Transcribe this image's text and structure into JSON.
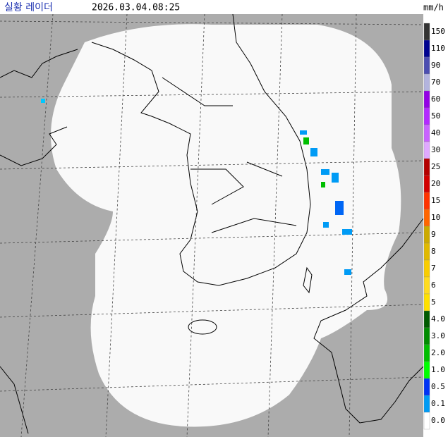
{
  "header": {
    "title": "실황 레이더",
    "timestamp": "2026.03.04.08:25",
    "unit": "mm/h"
  },
  "legend": {
    "items": [
      {
        "label": "150",
        "color": "#333333"
      },
      {
        "label": "110",
        "color": "#000390"
      },
      {
        "label": "90",
        "color": "#4c4eb1"
      },
      {
        "label": "70",
        "color": "#b3b4de"
      },
      {
        "label": "60",
        "color": "#9300e4"
      },
      {
        "label": "50",
        "color": "#b329ff"
      },
      {
        "label": "40",
        "color": "#c963ff"
      },
      {
        "label": "30",
        "color": "#e0a9ff"
      },
      {
        "label": "25",
        "color": "#b40000"
      },
      {
        "label": "20",
        "color": "#d20000"
      },
      {
        "label": "15",
        "color": "#ff3300"
      },
      {
        "label": "10",
        "color": "#ff6600"
      },
      {
        "label": "9",
        "color": "#ccaa00"
      },
      {
        "label": "8",
        "color": "#e0b900"
      },
      {
        "label": "7",
        "color": "#f9cd00"
      },
      {
        "label": "6",
        "color": "#ffdc1f"
      },
      {
        "label": "5",
        "color": "#ffe100"
      },
      {
        "label": "4.0",
        "color": "#005a00"
      },
      {
        "label": "3.0",
        "color": "#008c00"
      },
      {
        "label": "2.0",
        "color": "#00be00"
      },
      {
        "label": "1.0",
        "color": "#00ff00"
      },
      {
        "label": "0.5",
        "color": "#0033f5"
      },
      {
        "label": "0.1",
        "color": "#009bf5"
      },
      {
        "label": "0.0",
        "color": "#ffffff"
      }
    ]
  }
}
